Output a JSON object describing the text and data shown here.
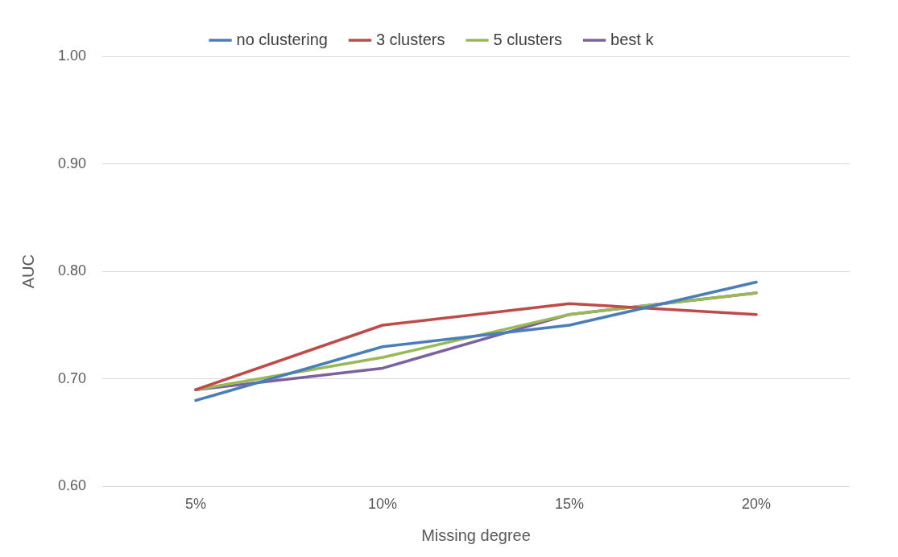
{
  "chart_data": {
    "type": "line",
    "xlabel": "Missing degree",
    "ylabel": "AUC",
    "categories": [
      "5%",
      "10%",
      "15%",
      "20%"
    ],
    "series": [
      {
        "name": "no clustering",
        "color": "#4a7ebb",
        "values": [
          0.68,
          0.73,
          0.75,
          0.79
        ]
      },
      {
        "name": "3 clusters",
        "color": "#be4b48",
        "values": [
          0.69,
          0.75,
          0.77,
          0.76
        ]
      },
      {
        "name": "5 clusters",
        "color": "#98b954",
        "values": [
          0.69,
          0.72,
          0.76,
          0.78
        ]
      },
      {
        "name": "best k",
        "color": "#7d60a0",
        "values": [
          0.69,
          0.71,
          0.76,
          0.78
        ]
      }
    ],
    "ylim": [
      0.6,
      1.0
    ],
    "yticks": [
      {
        "value": 0.6,
        "label": "0.60"
      },
      {
        "value": 0.7,
        "label": "0.70"
      },
      {
        "value": 0.8,
        "label": "0.80"
      },
      {
        "value": 0.9,
        "label": "0.90"
      },
      {
        "value": 1.0,
        "label": "1.00"
      }
    ],
    "grid": "y",
    "legend": "top",
    "marker": "none",
    "line_style": "solid"
  }
}
